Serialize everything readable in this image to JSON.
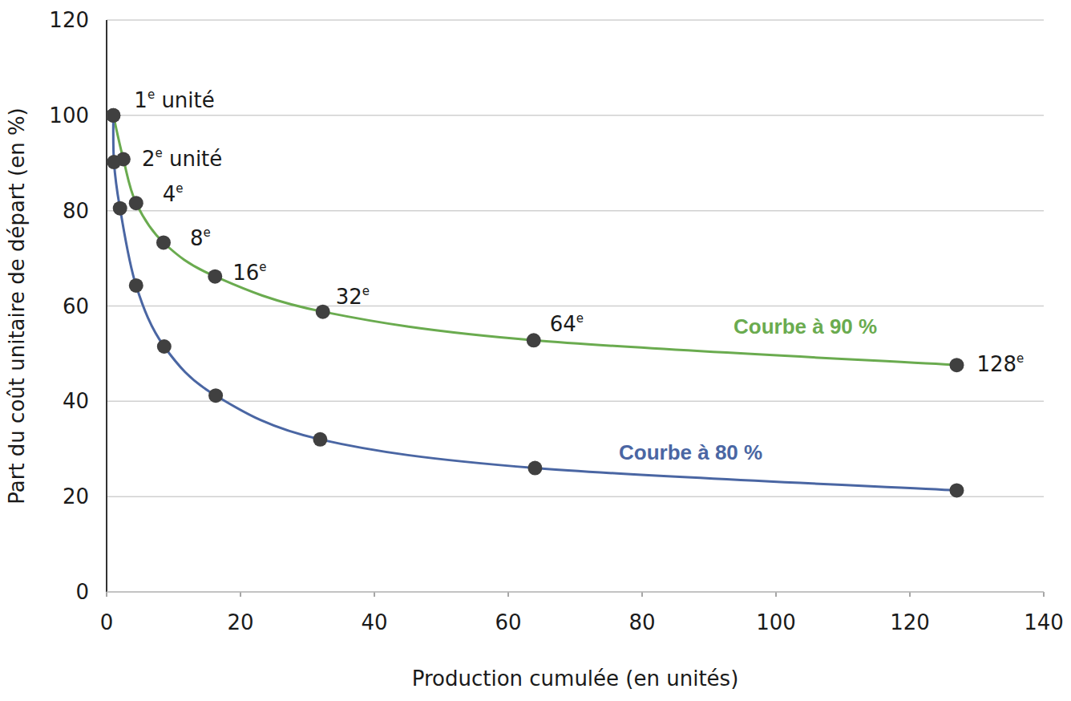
{
  "chart_data": {
    "type": "line",
    "x_label": "Production cumulée (en unités)",
    "y_label": "Part du coût unitaire de départ (en %)",
    "xlim": [
      0,
      140
    ],
    "xticks": [
      0,
      20,
      40,
      60,
      80,
      100,
      120,
      140
    ],
    "ylim": [
      0,
      120
    ],
    "yticks": [
      0,
      20,
      40,
      60,
      80,
      100,
      120
    ],
    "grid": true,
    "marker": "circle",
    "series": [
      {
        "name": "Courbe à 90 %",
        "color": "#6aab4f",
        "x": [
          1,
          2.5,
          4.4,
          8.5,
          16.2,
          32.3,
          63.8,
          127
        ],
        "values": [
          100,
          90.8,
          81.6,
          73.3,
          66.2,
          58.8,
          52.8,
          47.6
        ],
        "point_labels": [
          {
            "number": "1",
            "sup": "e",
            "rest": " unité"
          },
          {
            "number": "2",
            "sup": "e",
            "rest": " unité"
          },
          {
            "number": "4",
            "sup": "e",
            "rest": ""
          },
          {
            "number": "8",
            "sup": "e",
            "rest": ""
          },
          {
            "number": "16",
            "sup": "e",
            "rest": ""
          },
          {
            "number": "32",
            "sup": "e",
            "rest": ""
          },
          {
            "number": "64",
            "sup": "e",
            "rest": ""
          },
          {
            "number": "128",
            "sup": "e",
            "rest": ""
          }
        ]
      },
      {
        "name": "Courbe à 80 %",
        "color": "#4a66a3",
        "x": [
          1,
          1.1,
          2,
          4.4,
          8.6,
          16.3,
          31.9,
          64,
          127
        ],
        "values": [
          100,
          90.2,
          80.5,
          64.3,
          51.5,
          41.2,
          32,
          26,
          21.3
        ]
      }
    ]
  }
}
